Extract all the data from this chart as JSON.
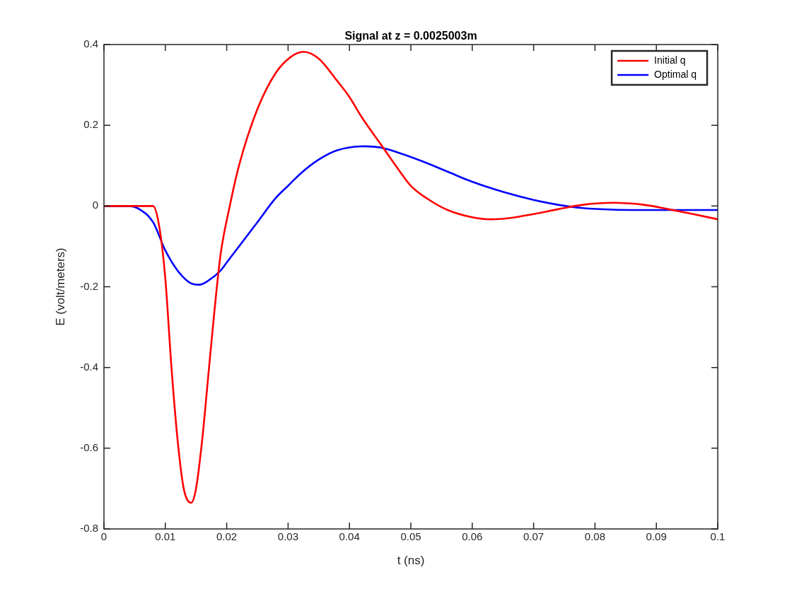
{
  "chart_data": {
    "type": "line",
    "title": "Signal at z = 0.0025003m",
    "xlabel": "t (ns)",
    "ylabel": "E (volt/meters)",
    "xlim": [
      0,
      0.1
    ],
    "xticks": [
      0,
      0.01,
      0.02,
      0.03,
      0.04,
      0.05,
      0.06,
      0.07,
      0.08,
      0.09,
      0.1
    ],
    "ylim": [
      -0.8,
      0.4
    ],
    "yticks": [
      -0.8,
      -0.6,
      -0.4,
      -0.2,
      0,
      0.2,
      0.4
    ],
    "grid": false,
    "legend": "top right",
    "marker": "none",
    "line_style": "solid",
    "series": [
      {
        "name": "Initial q",
        "color": "#ff0000",
        "x": [
          0,
          0.004,
          0.008,
          0.009,
          0.01,
          0.011,
          0.012,
          0.013,
          0.0142,
          0.015,
          0.016,
          0.017,
          0.018,
          0.019,
          0.0205,
          0.022,
          0.025,
          0.028,
          0.0305,
          0.0325,
          0.035,
          0.038,
          0.04,
          0.042,
          0.045,
          0.048,
          0.05,
          0.053,
          0.056,
          0.06,
          0.063,
          0.066,
          0.07,
          0.074,
          0.078,
          0.083,
          0.088,
          0.092,
          0.096,
          0.1
        ],
        "values": [
          0,
          0,
          0,
          -0.05,
          -0.18,
          -0.4,
          -0.58,
          -0.7,
          -0.735,
          -0.7,
          -0.58,
          -0.42,
          -0.26,
          -0.12,
          0,
          0.1,
          0.24,
          0.33,
          0.37,
          0.382,
          0.365,
          0.31,
          0.27,
          0.22,
          0.155,
          0.09,
          0.05,
          0.015,
          -0.01,
          -0.028,
          -0.033,
          -0.03,
          -0.02,
          -0.008,
          0.003,
          0.008,
          0.003,
          -0.008,
          -0.02,
          -0.033
        ]
      },
      {
        "name": "Optimal q",
        "color": "#0000ff",
        "x": [
          0,
          0.004,
          0.006,
          0.008,
          0.01,
          0.012,
          0.014,
          0.0155,
          0.017,
          0.019,
          0.02,
          0.022,
          0.025,
          0.028,
          0.03,
          0.032,
          0.035,
          0.038,
          0.0425,
          0.045,
          0.048,
          0.052,
          0.056,
          0.06,
          0.065,
          0.07,
          0.074,
          0.078,
          0.083,
          0.09,
          0.1
        ],
        "values": [
          0,
          0,
          -0.01,
          -0.04,
          -0.11,
          -0.16,
          -0.19,
          -0.195,
          -0.185,
          -0.16,
          -0.14,
          -0.1,
          -0.04,
          0.02,
          0.05,
          0.08,
          0.115,
          0.138,
          0.148,
          0.145,
          0.132,
          0.11,
          0.085,
          0.06,
          0.035,
          0.015,
          0.003,
          -0.005,
          -0.009,
          -0.01,
          -0.01
        ]
      }
    ]
  }
}
